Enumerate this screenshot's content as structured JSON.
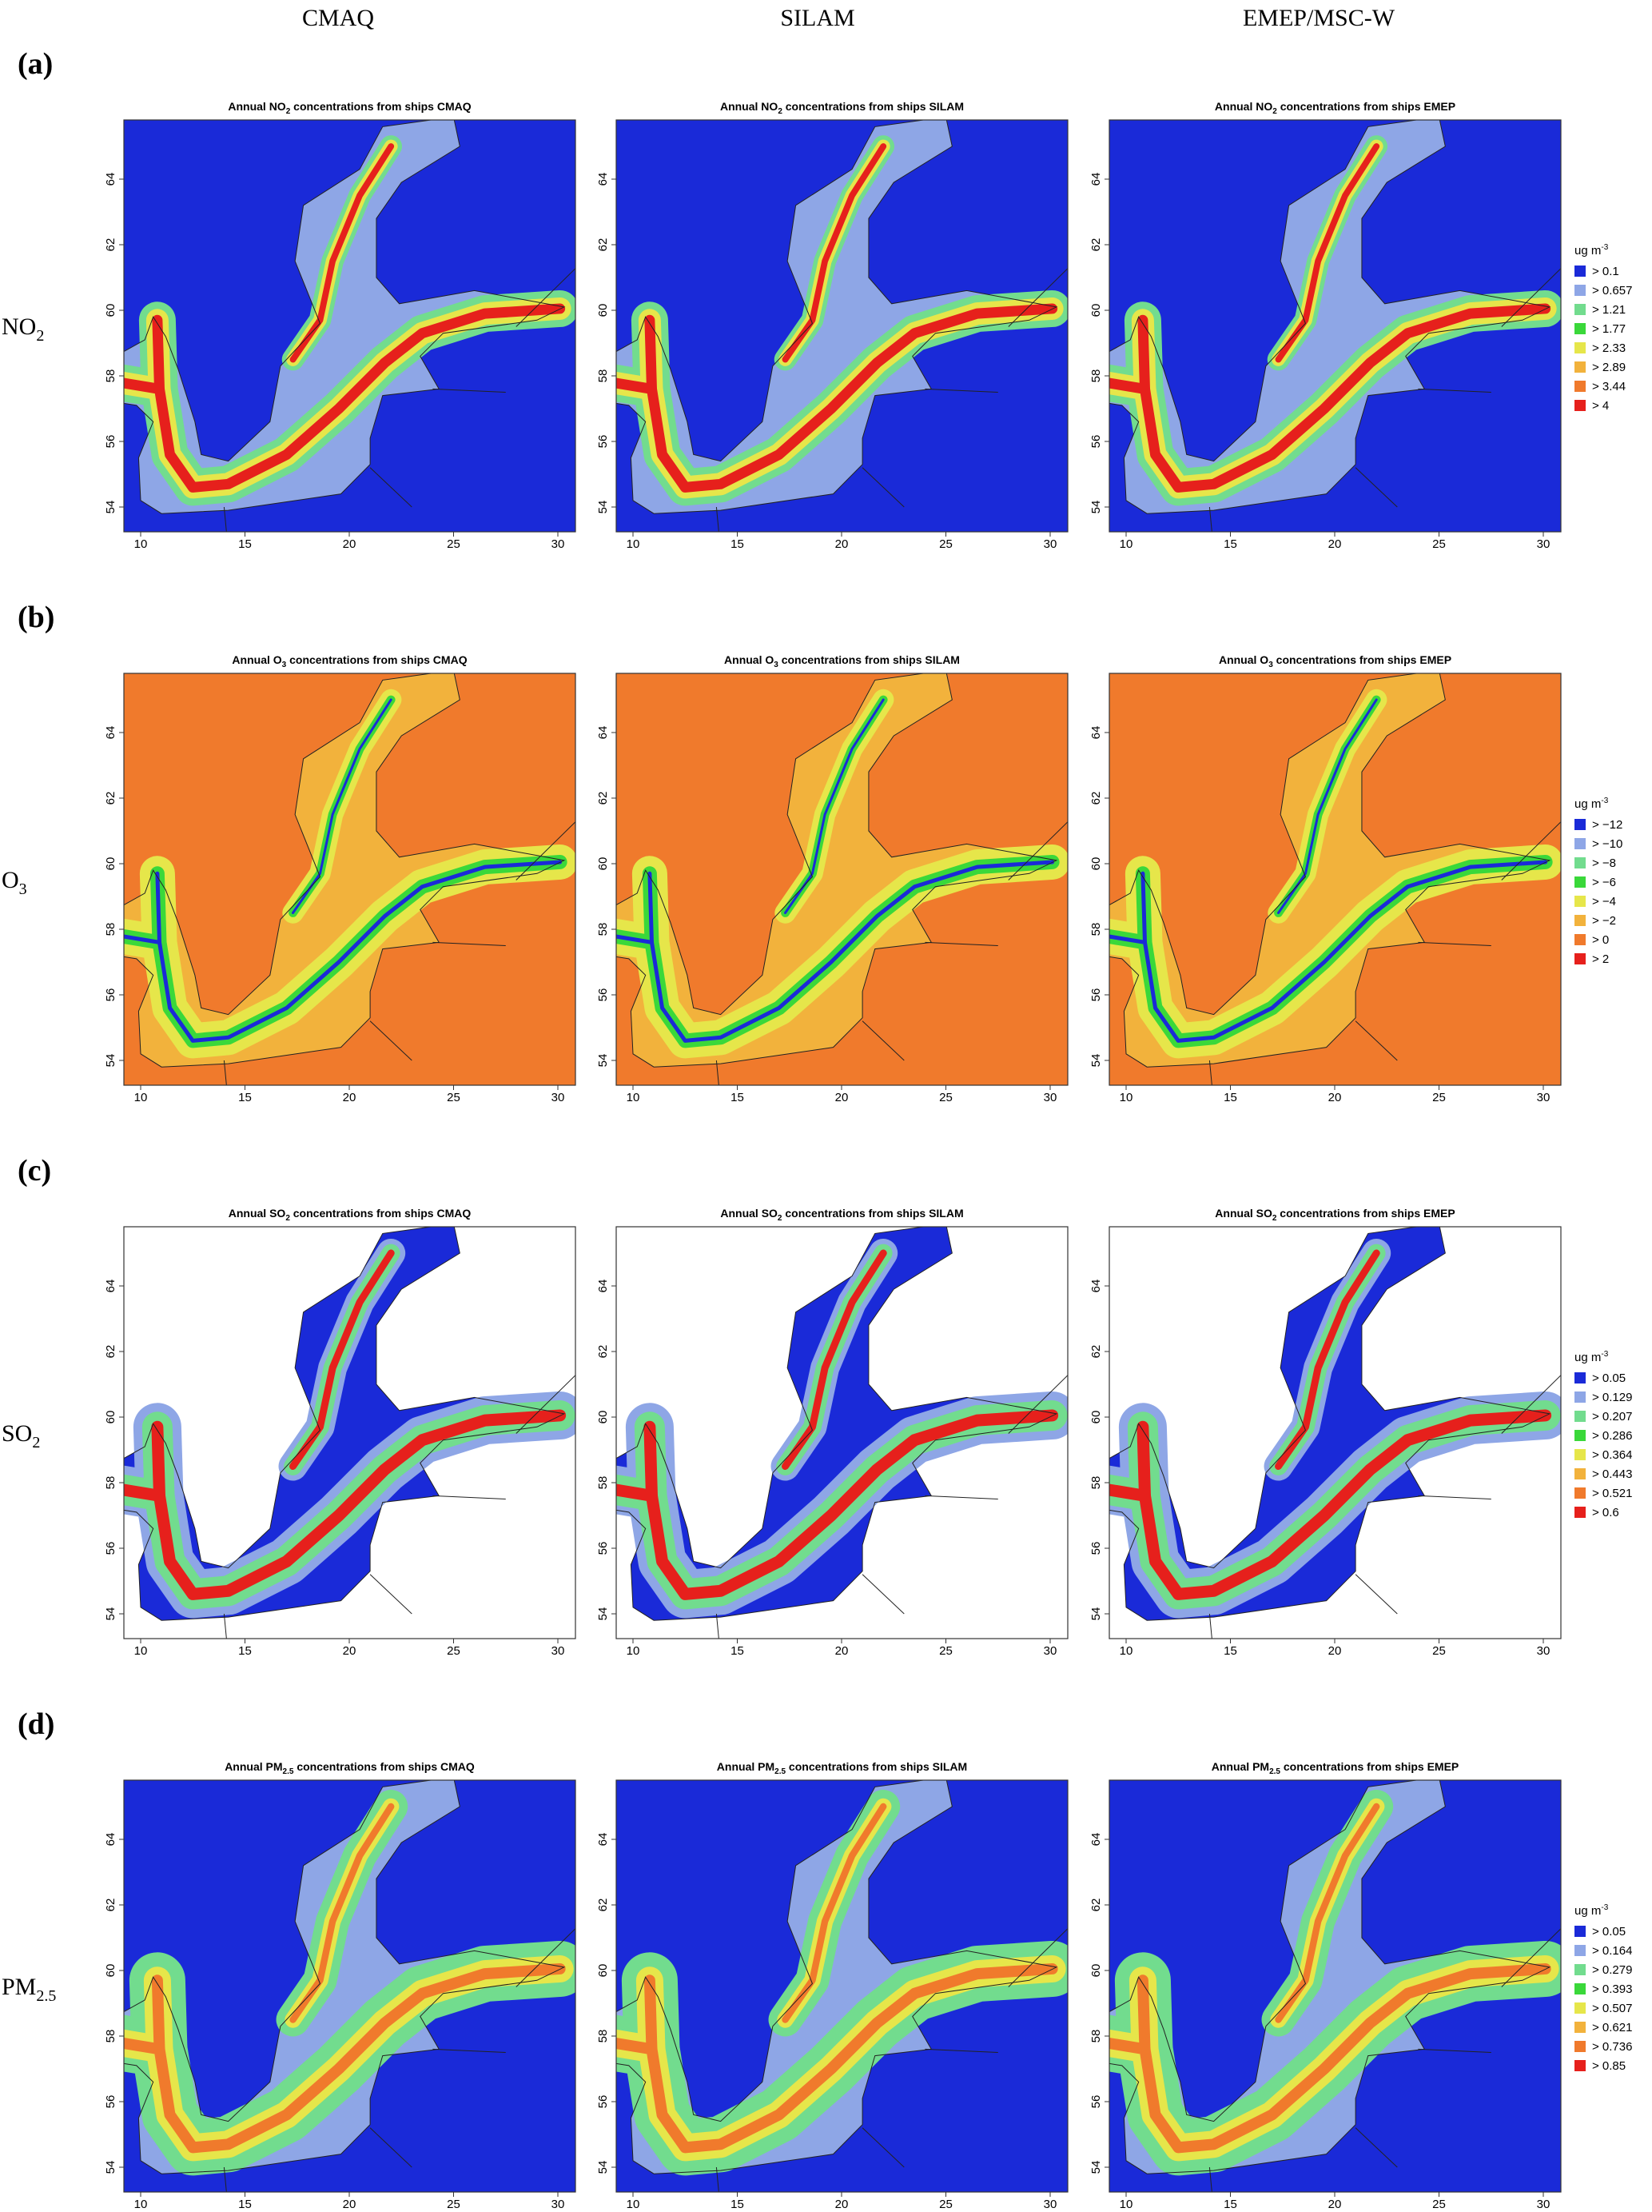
{
  "columns": [
    "CMAQ",
    "SILAM",
    "EMEP/MSC-W"
  ],
  "xticks": [
    10,
    15,
    20,
    25,
    30
  ],
  "yticks": [
    54,
    56,
    58,
    60,
    62,
    64
  ],
  "rows": [
    {
      "tag": "(a)",
      "label": {
        "text": "NO",
        "sub": "2"
      },
      "titles": [
        {
          "pre": "Annual NO",
          "sub": "2",
          "post": " concentrations from ships CMAQ"
        },
        {
          "pre": "Annual NO",
          "sub": "2",
          "post": " concentrations from ships SILAM"
        },
        {
          "pre": "Annual NO",
          "sub": "2",
          "post": " concentrations from ships EMEP"
        }
      ],
      "legend": {
        "unit": {
          "text": "ug m",
          "sup": "-3"
        },
        "items": [
          {
            "label": "> 0.1",
            "color": "#1a2ad8"
          },
          {
            "label": "> 0.657",
            "color": "#8ea6e6"
          },
          {
            "label": "> 1.21",
            "color": "#72dc8e"
          },
          {
            "label": "> 1.77",
            "color": "#3ad83a"
          },
          {
            "label": "> 2.33",
            "color": "#e6e64a"
          },
          {
            "label": "> 2.89",
            "color": "#f2b23c"
          },
          {
            "label": "> 3.44",
            "color": "#f07a2c"
          },
          {
            "label": "> 4",
            "color": "#e6201c"
          }
        ]
      }
    },
    {
      "tag": "(b)",
      "label": {
        "text": "O",
        "sub": "3"
      },
      "titles": [
        {
          "pre": "Annual O",
          "sub": "3",
          "post": "  concentrations from ships CMAQ"
        },
        {
          "pre": "Annual O",
          "sub": "3",
          "post": "  concentrations from ships SILAM"
        },
        {
          "pre": "Annual O",
          "sub": "3",
          "post": "  concentrations from ships EMEP"
        }
      ],
      "legend": {
        "unit": {
          "text": "ug m",
          "sup": "-3"
        },
        "items": [
          {
            "label": "> −12",
            "color": "#1a2ad8"
          },
          {
            "label": "> −10",
            "color": "#8ea6e6"
          },
          {
            "label": "> −8",
            "color": "#72dc8e"
          },
          {
            "label": "> −6",
            "color": "#3ad83a"
          },
          {
            "label": "> −4",
            "color": "#e6e64a"
          },
          {
            "label": "> −2",
            "color": "#f2b23c"
          },
          {
            "label": "> 0",
            "color": "#f07a2c"
          },
          {
            "label": "> 2",
            "color": "#e6201c"
          }
        ]
      }
    },
    {
      "tag": "(c)",
      "label": {
        "text": "SO",
        "sub": "2"
      },
      "titles": [
        {
          "pre": "Annual SO",
          "sub": "2",
          "post": " concentrations from ships CMAQ"
        },
        {
          "pre": "Annual SO",
          "sub": "2",
          "post": " concentrations from ships SILAM"
        },
        {
          "pre": "Annual SO",
          "sub": "2",
          "post": " concentrations from ships EMEP"
        }
      ],
      "legend": {
        "unit": {
          "text": "ug m",
          "sup": "-3"
        },
        "items": [
          {
            "label": "> 0.05",
            "color": "#1a2ad8"
          },
          {
            "label": "> 0.129",
            "color": "#8ea6e6"
          },
          {
            "label": "> 0.207",
            "color": "#72dc8e"
          },
          {
            "label": "> 0.286",
            "color": "#3ad83a"
          },
          {
            "label": "> 0.364",
            "color": "#e6e64a"
          },
          {
            "label": "> 0.443",
            "color": "#f2b23c"
          },
          {
            "label": "> 0.521",
            "color": "#f07a2c"
          },
          {
            "label": "> 0.6",
            "color": "#e6201c"
          }
        ]
      }
    },
    {
      "tag": "(d)",
      "label": {
        "text": "PM",
        "sub": "2.5"
      },
      "titles": [
        {
          "pre": "Annual PM",
          "sub": "2.5",
          "post": " concentrations from ships CMAQ"
        },
        {
          "pre": "Annual PM",
          "sub": "2.5",
          "post": " concentrations from ships SILAM"
        },
        {
          "pre": "Annual PM",
          "sub": "2.5",
          "post": " concentrations from ships EMEP"
        }
      ],
      "legend": {
        "unit": {
          "text": "ug m",
          "sup": "-3"
        },
        "items": [
          {
            "label": "> 0.05",
            "color": "#1a2ad8"
          },
          {
            "label": "> 0.164",
            "color": "#8ea6e6"
          },
          {
            "label": "> 0.279",
            "color": "#72dc8e"
          },
          {
            "label": "> 0.393",
            "color": "#3ad83a"
          },
          {
            "label": "> 0.507",
            "color": "#e6e64a"
          },
          {
            "label": "> 0.621",
            "color": "#f2b23c"
          },
          {
            "label": "> 0.736",
            "color": "#f07a2c"
          },
          {
            "label": "> 0.85",
            "color": "#e6201c"
          }
        ]
      }
    }
  ]
}
